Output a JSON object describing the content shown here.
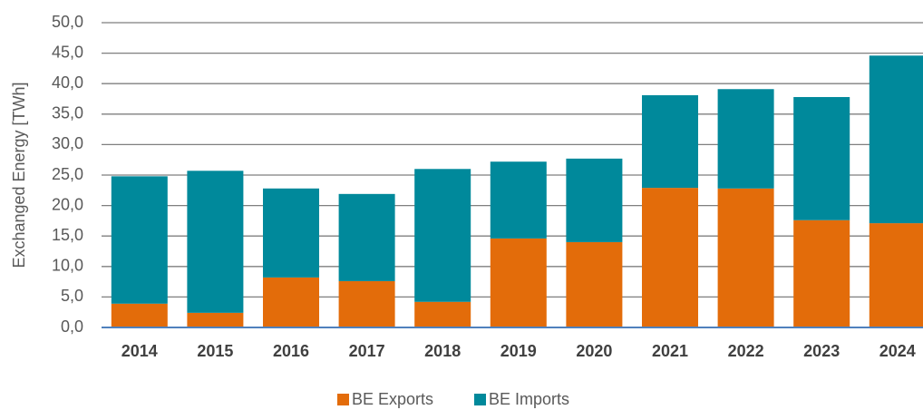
{
  "chart_data": {
    "type": "bar",
    "stacked": true,
    "y_label": "Exchanged Energy [TWh]",
    "categories": [
      "2014",
      "2015",
      "2016",
      "2017",
      "2018",
      "2019",
      "2020",
      "2021",
      "2022",
      "2023",
      "2024"
    ],
    "series": [
      {
        "name": "BE Exports",
        "color": "#e36c0a",
        "values": [
          3.9,
          2.4,
          8.2,
          7.6,
          4.2,
          14.6,
          14.0,
          22.9,
          22.8,
          17.6,
          17.1
        ]
      },
      {
        "name": "BE Imports",
        "color": "#00899b",
        "values": [
          20.9,
          23.3,
          14.6,
          14.3,
          21.8,
          12.6,
          13.7,
          15.2,
          16.3,
          20.2,
          27.5
        ]
      }
    ],
    "ylim": [
      0,
      50
    ],
    "yticks": [
      {
        "value": 0,
        "label": "0,0"
      },
      {
        "value": 5,
        "label": "5,0"
      },
      {
        "value": 10,
        "label": "10,0"
      },
      {
        "value": 15,
        "label": "15,0"
      },
      {
        "value": 20,
        "label": "20,0"
      },
      {
        "value": 25,
        "label": "25,0"
      },
      {
        "value": 30,
        "label": "30,0"
      },
      {
        "value": 35,
        "label": "35,0"
      },
      {
        "value": 40,
        "label": "40,0"
      },
      {
        "value": 45,
        "label": "45,0"
      },
      {
        "value": 50,
        "label": "50,0"
      }
    ],
    "grid": true,
    "legend": "bottom"
  }
}
